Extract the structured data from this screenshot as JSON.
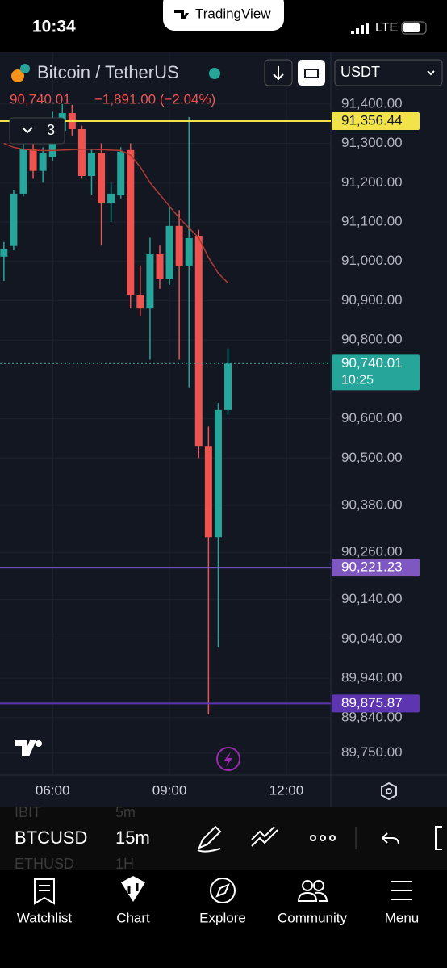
{
  "status_bar": {
    "time": "10:34",
    "app": "TradingView",
    "network": "LTE"
  },
  "header": {
    "symbol": "Bitcoin / TetherUS",
    "last": "90,740.01",
    "change": "−1,891.00 (−2.04%)",
    "currency": "USDT",
    "indicators": "3"
  },
  "chart_data": {
    "type": "candlestick",
    "x": [
      4.75,
      5.0,
      5.25,
      5.5,
      5.75,
      6.0,
      6.25,
      6.5,
      6.75,
      7.0,
      7.25,
      7.5,
      7.75,
      8.0,
      8.25,
      8.5,
      8.75,
      9.0,
      9.25,
      9.5,
      9.75,
      10.0,
      10.25,
      10.5
    ],
    "open": [
      91012,
      91039,
      91172,
      91285,
      91230,
      91265,
      91332,
      91377,
      91336,
      91217,
      91275,
      91147,
      91168,
      91283,
      90915,
      90880,
      91018,
      90956,
      91090,
      90987,
      91065,
      90529,
      90299,
      90622
    ],
    "high": [
      91049,
      91182,
      91300,
      91298,
      91290,
      91380,
      91400,
      91398,
      91345,
      91285,
      91300,
      91200,
      91290,
      91300,
      90990,
      91060,
      91040,
      91140,
      91130,
      91367,
      91080,
      90580,
      90640,
      90778
    ],
    "low": [
      90950,
      91028,
      91165,
      91210,
      91200,
      91255,
      91320,
      91320,
      91210,
      91170,
      91040,
      91100,
      91160,
      90880,
      90860,
      90750,
      90930,
      90940,
      90750,
      90680,
      90500,
      89848,
      90018,
      90610
    ],
    "close": [
      91032,
      91172,
      91285,
      91230,
      91275,
      91336,
      91377,
      91336,
      91217,
      91275,
      91147,
      91172,
      91279,
      90915,
      90880,
      91018,
      90956,
      91090,
      90987,
      91059,
      90529,
      90299,
      90622,
      90740.01
    ],
    "ma": {
      "color": "#b23a33",
      "values": [
        91300,
        91290,
        91285,
        91283,
        91282,
        91282,
        91283,
        91284,
        91285,
        91285,
        91284,
        91283,
        91282,
        91270,
        91240,
        91200,
        91170,
        91140,
        91110,
        91085,
        91060,
        91010,
        90970,
        90945
      ]
    },
    "up_color": "#26a69a",
    "down_color": "#ef5350",
    "xlim": [
      4.65,
      13.14
    ],
    "xticks": [
      {
        "value": 6,
        "label": "06:00"
      },
      {
        "value": 9,
        "label": "09:00"
      },
      {
        "value": 12,
        "label": "12:00"
      }
    ],
    "ylim": [
      89694,
      91531
    ],
    "yticks": [
      {
        "value": 91400,
        "label": "91,400.00"
      },
      {
        "value": 91300,
        "label": "91,300.00"
      },
      {
        "value": 91200,
        "label": "91,200.00"
      },
      {
        "value": 91100,
        "label": "91,100.00"
      },
      {
        "value": 91000,
        "label": "91,000.00"
      },
      {
        "value": 90900,
        "label": "90,900.00"
      },
      {
        "value": 90800,
        "label": "90,800.00"
      },
      {
        "value": 90600,
        "label": "90,600.00"
      },
      {
        "value": 90500,
        "label": "90,500.00"
      },
      {
        "value": 90380,
        "label": "90,380.00"
      },
      {
        "value": 90260,
        "label": "90,260.00"
      },
      {
        "value": 90140,
        "label": "90,140.00"
      },
      {
        "value": 90040,
        "label": "90,040.00"
      },
      {
        "value": 89940,
        "label": "89,940.00"
      },
      {
        "value": 89840,
        "label": "89,840.00"
      },
      {
        "value": 89750,
        "label": "89,750.00"
      }
    ],
    "grid": true,
    "price_lines": [
      {
        "value": 91356.44,
        "label": "91,356.44",
        "color": "#f2e34a"
      },
      {
        "value": 90740.01,
        "label": "90,740.01",
        "color": "#26a69a",
        "countdown": "10:25"
      },
      {
        "value": 90221.23,
        "label": "90,221.23",
        "color": "#7e57c2"
      },
      {
        "value": 89875.87,
        "label": "89,875.87",
        "color": "#5e35b1"
      }
    ]
  },
  "toolbar": {
    "symbols": [
      "IBIT",
      "BTCUSD",
      "ETHUSD"
    ],
    "intervals": [
      "5m",
      "15m",
      "1H"
    ]
  },
  "nav": [
    "Watchlist",
    "Chart",
    "Explore",
    "Community",
    "Menu"
  ]
}
